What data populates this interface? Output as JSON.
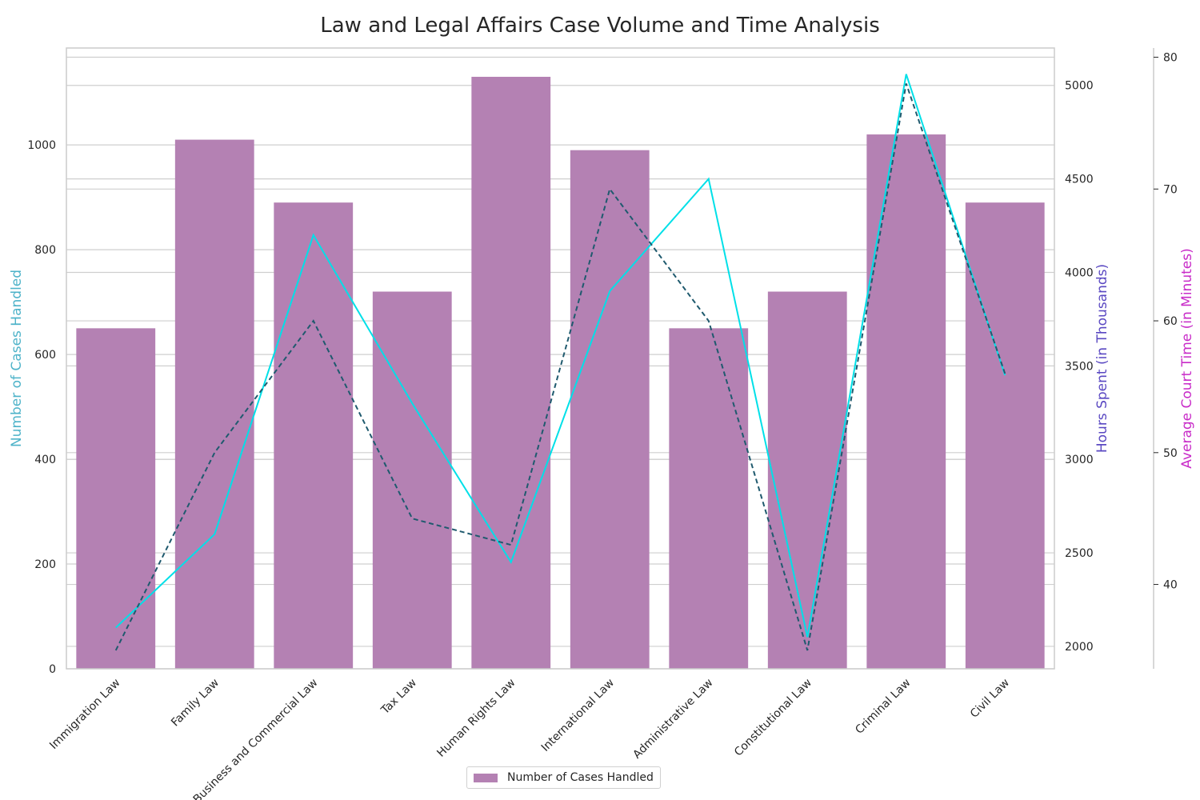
{
  "chart_data": {
    "type": "bar",
    "title": "Law and Legal Affairs Case Volume and Time Analysis",
    "categories": [
      "Immigration Law",
      "Family Law",
      "Business and Commercial Law",
      "Tax Law",
      "Human Rights Law",
      "International Law",
      "Administrative Law",
      "Constitutional Law",
      "Criminal Law",
      "Civil Law"
    ],
    "series": [
      {
        "name": "Number of Cases Handled",
        "type": "bar",
        "axis": "left",
        "color": "#b481b3",
        "values": [
          650,
          1010,
          890,
          720,
          1130,
          990,
          650,
          720,
          1020,
          890
        ]
      },
      {
        "type": "line",
        "axis": "right1",
        "color": "#00e0e8",
        "values": [
          2100,
          2600,
          4200,
          3300,
          2450,
          3900,
          4500,
          2050,
          5060,
          3450
        ]
      },
      {
        "type": "line",
        "axis": "right2",
        "color": "#1f5a6e",
        "dashed": true,
        "values": [
          35,
          50,
          60,
          45,
          43,
          70,
          60,
          35,
          78,
          56
        ]
      }
    ],
    "axes": {
      "left": {
        "label": "Number of Cases Handled",
        "ylim": [
          0,
          1185
        ],
        "ticks": [
          0,
          200,
          400,
          600,
          800,
          1000
        ],
        "color": "#4eb3c9"
      },
      "right1": {
        "label": "Hours Spent (in Thousands)",
        "ylim": [
          1880,
          5200
        ],
        "ticks": [
          2000,
          2500,
          3000,
          3500,
          4000,
          4500,
          5000
        ],
        "color": "#5a48c2"
      },
      "right2": {
        "label": "Average Court Time (in Minutes)",
        "ylim": [
          33.6,
          80.7
        ],
        "ticks": [
          40,
          50,
          60,
          70,
          80
        ],
        "color": "#c82bc8"
      }
    },
    "grid": true,
    "legend": {
      "placement": "bottom-center",
      "entries": [
        "Number of Cases Handled"
      ]
    }
  }
}
